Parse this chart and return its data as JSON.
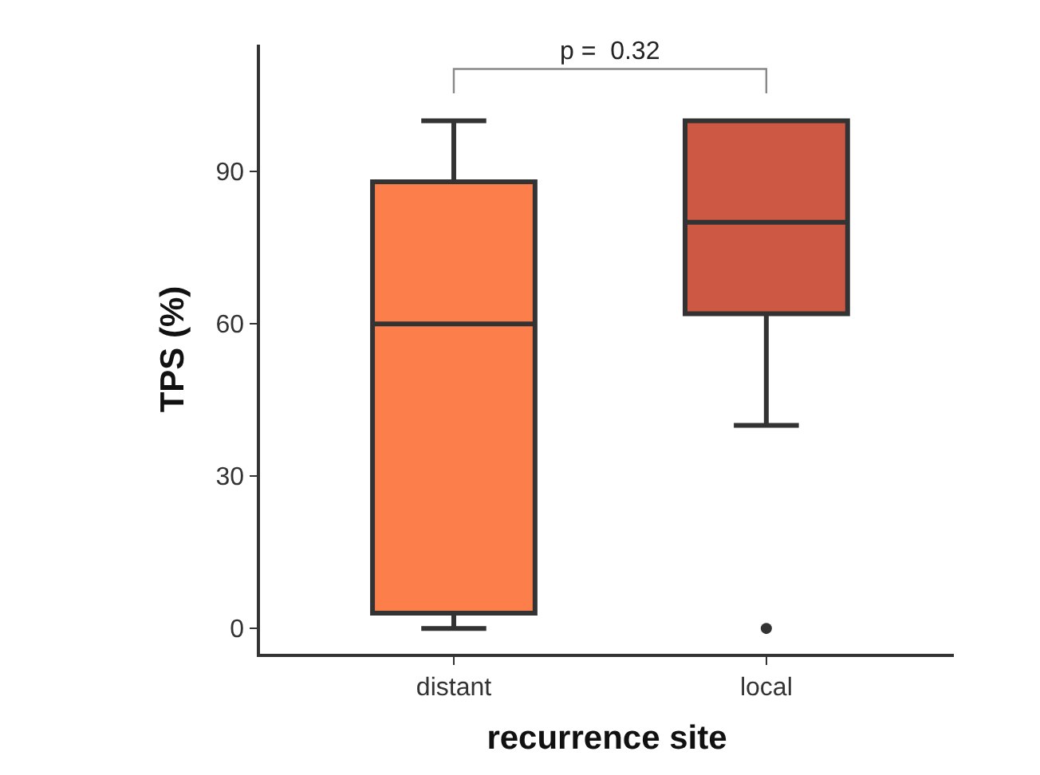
{
  "chart_data": {
    "type": "box",
    "xlabel": "recurrence site",
    "ylabel": "TPS (%)",
    "categories": [
      "distant",
      "local"
    ],
    "ylim": [
      -5,
      115
    ],
    "yticks": [
      0,
      30,
      60,
      90
    ],
    "grid": false,
    "annotations": [
      "p =  0.32"
    ],
    "series": [
      {
        "colors": [
          "#fc7f4b",
          "#cd5843"
        ],
        "boxes": [
          {
            "low": 0,
            "q1": 3,
            "median": 60,
            "q3": 88,
            "high": 100
          },
          {
            "low": 40,
            "q1": 62,
            "median": 80,
            "q3": 100,
            "high": 100,
            "outliers": [
              0
            ]
          }
        ]
      }
    ]
  }
}
